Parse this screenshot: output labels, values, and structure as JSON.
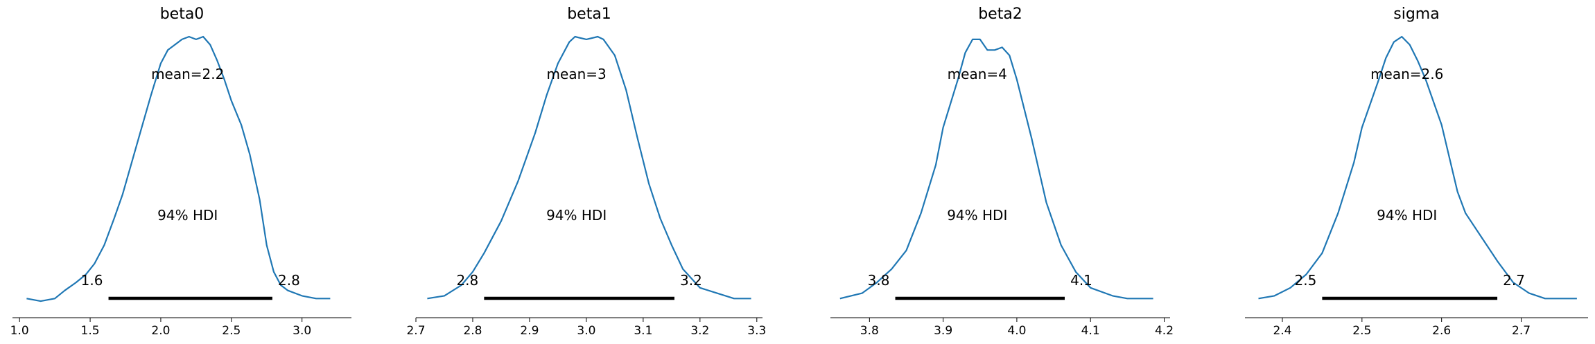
{
  "colors": {
    "kde": "#1f77b4",
    "hdi": "#000000",
    "axis": "#000000"
  },
  "chart_data": [
    {
      "type": "line",
      "title": "beta0",
      "mean_label": "mean=2.2",
      "hdi_label": "94% HDI",
      "hdi": [
        1.63,
        2.79
      ],
      "hdi_low_label": "1.6",
      "hdi_high_label": "2.8",
      "xlim": [
        0.95,
        3.35
      ],
      "xticks": [
        1.0,
        1.5,
        2.0,
        2.5,
        3.0
      ],
      "xtick_labels": [
        "1.0",
        "1.5",
        "2.0",
        "2.5",
        "3.0"
      ],
      "kde": {
        "x": [
          1.05,
          1.15,
          1.25,
          1.32,
          1.4,
          1.47,
          1.53,
          1.6,
          1.67,
          1.73,
          1.8,
          1.87,
          1.93,
          2.0,
          2.05,
          2.1,
          2.15,
          2.2,
          2.25,
          2.3,
          2.35,
          2.4,
          2.45,
          2.5,
          2.57,
          2.63,
          2.7,
          2.75,
          2.8,
          2.85,
          2.9,
          3.0,
          3.1,
          3.2
        ],
        "y": [
          0.02,
          0.01,
          0.02,
          0.05,
          0.08,
          0.11,
          0.15,
          0.22,
          0.32,
          0.41,
          0.54,
          0.67,
          0.78,
          0.9,
          0.95,
          0.97,
          0.99,
          1.0,
          0.99,
          1.0,
          0.97,
          0.91,
          0.84,
          0.76,
          0.67,
          0.56,
          0.39,
          0.22,
          0.12,
          0.07,
          0.05,
          0.03,
          0.02,
          0.02
        ]
      }
    },
    {
      "type": "line",
      "title": "beta1",
      "mean_label": "mean=3",
      "hdi_label": "94% HDI",
      "hdi": [
        2.82,
        3.155
      ],
      "hdi_low_label": "2.8",
      "hdi_high_label": "3.2",
      "xlim": [
        2.7,
        3.31
      ],
      "xticks": [
        2.7,
        2.8,
        2.9,
        3.0,
        3.1,
        3.2,
        3.3
      ],
      "xtick_labels": [
        "2.7",
        "2.8",
        "2.9",
        "3.0",
        "3.1",
        "3.2",
        "3.3"
      ],
      "kde": {
        "x": [
          2.72,
          2.75,
          2.78,
          2.8,
          2.82,
          2.85,
          2.88,
          2.91,
          2.93,
          2.95,
          2.97,
          2.98,
          3.0,
          3.02,
          3.03,
          3.05,
          3.07,
          3.09,
          3.11,
          3.13,
          3.15,
          3.17,
          3.2,
          3.23,
          3.26,
          3.29
        ],
        "y": [
          0.02,
          0.03,
          0.07,
          0.12,
          0.19,
          0.31,
          0.46,
          0.64,
          0.78,
          0.9,
          0.98,
          1.0,
          0.99,
          1.0,
          0.99,
          0.93,
          0.8,
          0.62,
          0.45,
          0.32,
          0.22,
          0.13,
          0.06,
          0.04,
          0.02,
          0.02
        ]
      }
    },
    {
      "type": "line",
      "title": "beta2",
      "mean_label": "mean=4",
      "hdi_label": "94% HDI",
      "hdi": [
        3.835,
        4.065
      ],
      "hdi_low_label": "3.8",
      "hdi_high_label": "4.1",
      "xlim": [
        3.747,
        4.208
      ],
      "xticks": [
        3.8,
        3.9,
        4.0,
        4.1,
        4.2
      ],
      "xtick_labels": [
        "3.8",
        "3.9",
        "4.0",
        "4.1",
        "4.2"
      ],
      "kde": {
        "x": [
          3.76,
          3.79,
          3.81,
          3.83,
          3.85,
          3.87,
          3.89,
          3.9,
          3.92,
          3.93,
          3.94,
          3.95,
          3.96,
          3.97,
          3.98,
          3.99,
          4.0,
          4.02,
          4.04,
          4.06,
          4.08,
          4.1,
          4.13,
          4.15,
          4.185
        ],
        "y": [
          0.02,
          0.04,
          0.08,
          0.13,
          0.2,
          0.34,
          0.52,
          0.66,
          0.84,
          0.94,
          0.99,
          0.99,
          0.95,
          0.95,
          0.96,
          0.93,
          0.84,
          0.62,
          0.38,
          0.22,
          0.12,
          0.06,
          0.03,
          0.02,
          0.02
        ]
      }
    },
    {
      "type": "line",
      "title": "sigma",
      "mean_label": "mean=2.6",
      "hdi_label": "94% HDI",
      "hdi": [
        2.45,
        2.67
      ],
      "hdi_low_label": "2.5",
      "hdi_high_label": "2.7",
      "xlim": [
        2.353,
        2.784
      ],
      "xticks": [
        2.4,
        2.5,
        2.6,
        2.7
      ],
      "xtick_labels": [
        "2.4",
        "2.5",
        "2.6",
        "2.7"
      ],
      "kde": {
        "x": [
          2.37,
          2.39,
          2.41,
          2.43,
          2.45,
          2.47,
          2.49,
          2.5,
          2.52,
          2.53,
          2.54,
          2.55,
          2.56,
          2.57,
          2.58,
          2.6,
          2.62,
          2.63,
          2.65,
          2.67,
          2.69,
          2.71,
          2.73,
          2.75,
          2.77
        ],
        "y": [
          0.02,
          0.03,
          0.06,
          0.11,
          0.19,
          0.34,
          0.53,
          0.66,
          0.83,
          0.92,
          0.98,
          1.0,
          0.97,
          0.91,
          0.84,
          0.67,
          0.42,
          0.34,
          0.25,
          0.16,
          0.08,
          0.04,
          0.02,
          0.02,
          0.02
        ]
      }
    }
  ]
}
